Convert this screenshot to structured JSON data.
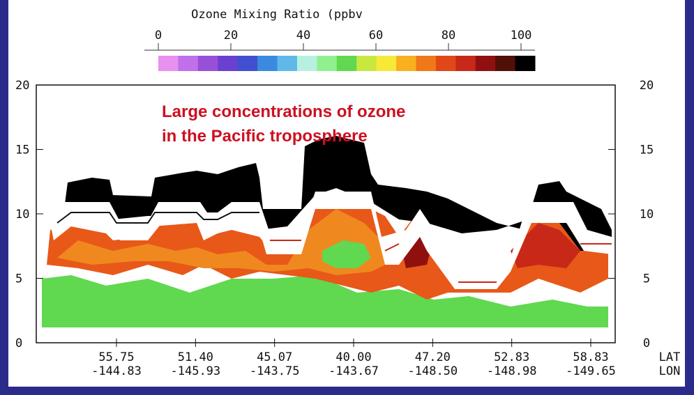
{
  "chart_data": {
    "type": "heatmap",
    "colorbar": {
      "title": "Ozone Mixing Ratio (ppbv",
      "ticks": [
        "0",
        "20",
        "40",
        "60",
        "80",
        "100"
      ],
      "range": [
        0,
        100
      ],
      "colors": [
        "#e890f0",
        "#c070e8",
        "#9850d8",
        "#6a40d0",
        "#4050d0",
        "#3a8ae0",
        "#60b8e8",
        "#b8f0e0",
        "#90f090",
        "#60d850",
        "#c8e840",
        "#f8e838",
        "#f8b020",
        "#f07818",
        "#e04818",
        "#c82818",
        "#901010",
        "#501008",
        "#000000"
      ]
    },
    "y_axis": {
      "ticks": [
        "0",
        "5",
        "10",
        "15",
        "20"
      ],
      "range": [
        0,
        20
      ]
    },
    "x_axis": {
      "lat_label": "LAT",
      "lon_label": "LON",
      "lat": [
        "55.75",
        "51.40",
        "45.07",
        "40.00",
        "47.20",
        "52.83",
        "58.83"
      ],
      "lon": [
        "-144.83",
        "-145.93",
        "-143.75",
        "-143.67",
        "-148.50",
        "-148.98",
        "-149.65"
      ]
    },
    "annotation": [
      "Large concentrations of ozone",
      "in the Pacific troposphere"
    ]
  }
}
